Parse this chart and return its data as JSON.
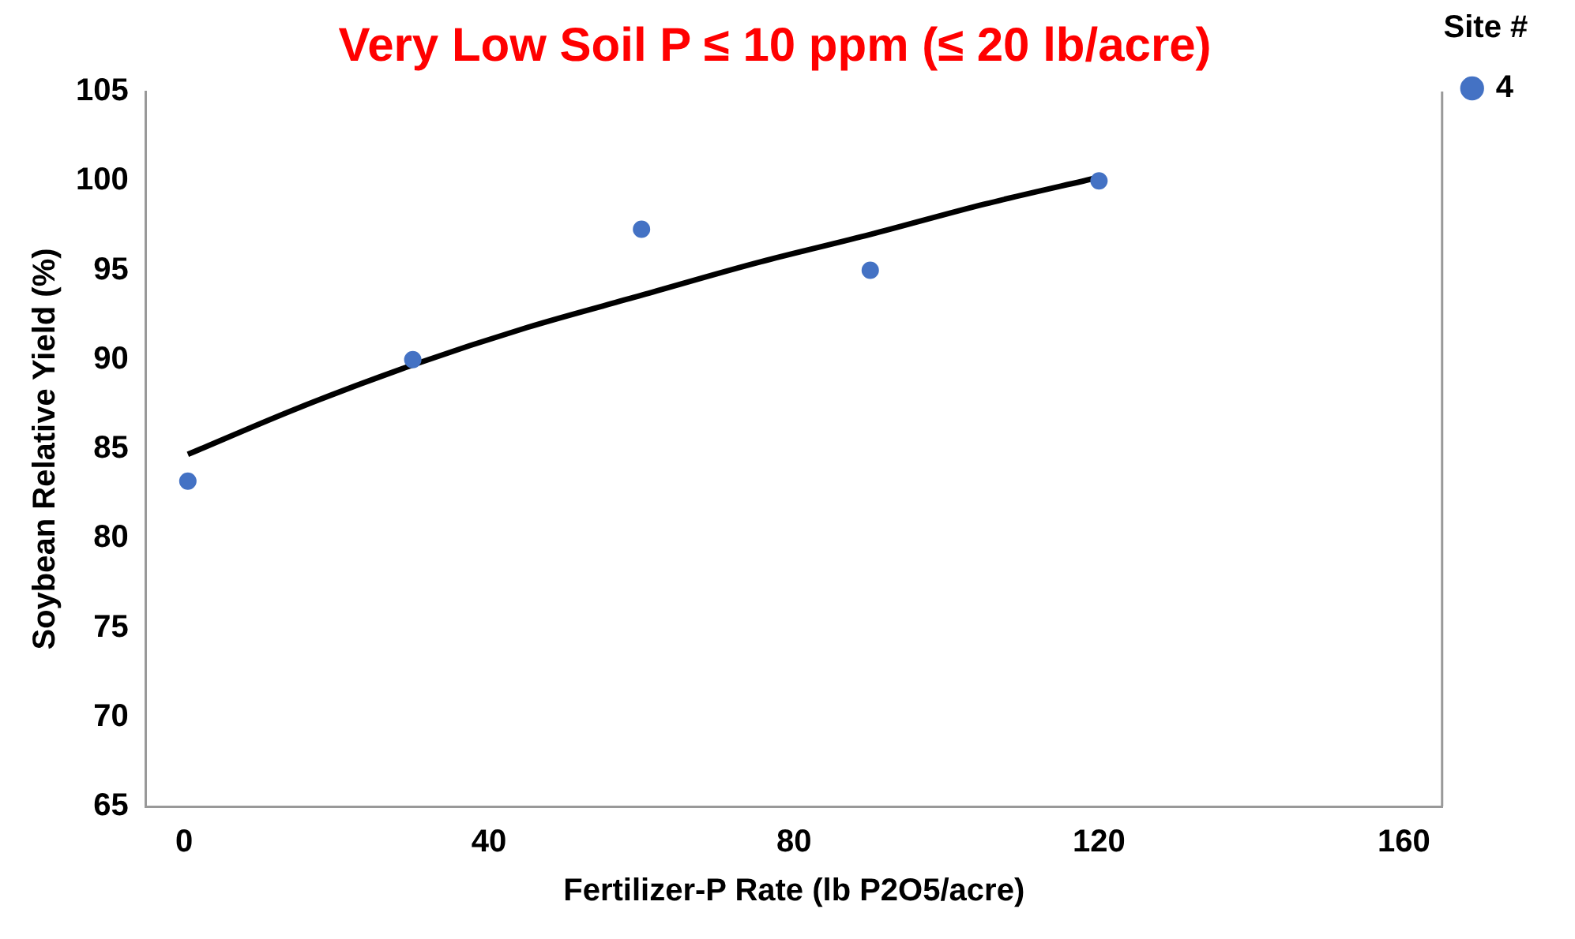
{
  "chart_data": {
    "type": "scatter",
    "title": "Very Low Soil P ≤ 10 ppm (≤ 20 lb/acre)",
    "xlabel": "Fertilizer-P Rate (lb P2O5/acre)",
    "ylabel": "Soybean Relative Yield (%)",
    "legend_title": "Site #",
    "legend": "top right",
    "marker": "circle",
    "grid": false,
    "xlim": [
      -5,
      165
    ],
    "xticks": [
      0,
      40,
      80,
      120,
      160
    ],
    "ylim": [
      65,
      105
    ],
    "yticks": [
      65,
      70,
      75,
      80,
      85,
      90,
      95,
      100,
      105
    ],
    "series": [
      {
        "name": "4",
        "color": "#4472c4",
        "x": [
          0.5,
          30,
          60,
          90,
          120
        ],
        "values": [
          83.2,
          90,
          97.3,
          95,
          100
        ]
      },
      {
        "type": "line",
        "marker": "none",
        "color": "#000000",
        "x": [
          0.5,
          15,
          30,
          45,
          60,
          75,
          90,
          105,
          120
        ],
        "values": [
          84.7,
          87.3,
          89.7,
          91.8,
          93.6,
          95.4,
          97.0,
          98.7,
          100.2
        ]
      }
    ]
  }
}
